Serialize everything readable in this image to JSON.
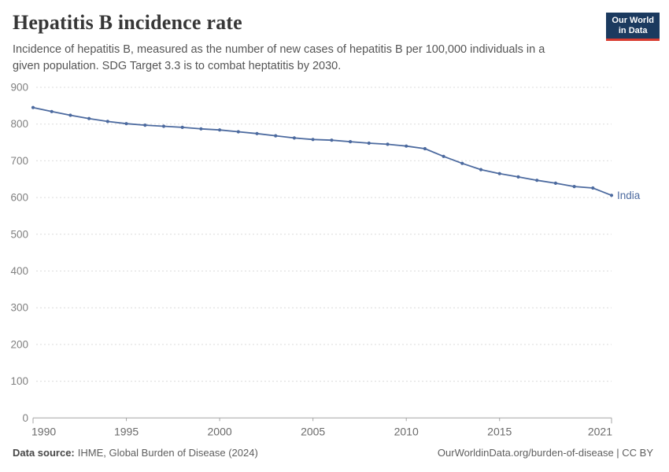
{
  "header": {
    "title": "Hepatitis B incidence rate",
    "subtitle_line1": "Incidence of hepatitis B, measured as the number of new cases of hepatitis B per 100,000 individuals in a",
    "subtitle_line2": "given population. SDG Target 3.3 is to combat heptatitis by 2030."
  },
  "logo": {
    "line1": "Our World",
    "line2": "in Data",
    "bg_color": "#1b3a5f",
    "accent_color": "#d93b30"
  },
  "footer": {
    "source_label": "Data source:",
    "source_value": "IHME, Global Burden of Disease (2024)",
    "link": "OurWorldinData.org/burden-of-disease | CC BY"
  },
  "colors": {
    "line": "#4c6a9f",
    "series_label": "#4c6a9f",
    "gridline": "#dcdcdc",
    "axis": "#a5a5a5",
    "y_tick_label": "#808080",
    "x_tick_label": "#6b6b6b"
  },
  "chart_data": {
    "type": "line",
    "title": "Hepatitis B incidence rate",
    "xlabel": "",
    "ylabel": "",
    "x": [
      1990,
      1991,
      1992,
      1993,
      1994,
      1995,
      1996,
      1997,
      1998,
      1999,
      2000,
      2001,
      2002,
      2003,
      2004,
      2005,
      2006,
      2007,
      2008,
      2009,
      2010,
      2011,
      2012,
      2013,
      2014,
      2015,
      2016,
      2017,
      2018,
      2019,
      2020,
      2021
    ],
    "series": [
      {
        "name": "India",
        "values": [
          845,
          834,
          824,
          815,
          807,
          801,
          797,
          794,
          791,
          787,
          784,
          779,
          774,
          768,
          762,
          758,
          756,
          752,
          748,
          745,
          740,
          733,
          712,
          693,
          676,
          665,
          656,
          647,
          639,
          630,
          626,
          606
        ]
      }
    ],
    "xlim": [
      1990,
      2021
    ],
    "ylim": [
      0,
      900
    ],
    "x_ticks": [
      1990,
      1995,
      2000,
      2005,
      2010,
      2015,
      2021
    ],
    "y_ticks": [
      0,
      100,
      200,
      300,
      400,
      500,
      600,
      700,
      800,
      900
    ],
    "grid": "horizontal-dashed",
    "legend_position": "end-of-line-label",
    "markers": true
  }
}
